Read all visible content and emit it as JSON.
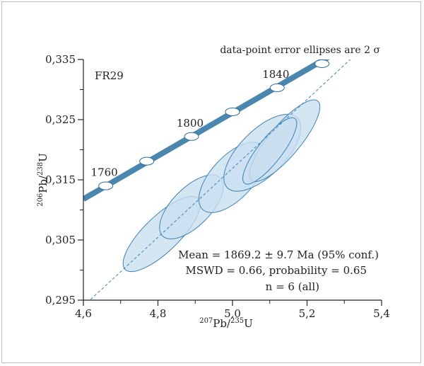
{
  "chart_data": {
    "type": "scatter",
    "title": "data-point error ellipses are 2 σ",
    "sample_label": "FR29",
    "xlabel": {
      "sup": "207",
      "main": "Pb/",
      "sup2": "235",
      "end": "U"
    },
    "ylabel": {
      "sup": "206",
      "main": "Pb/",
      "sup2": "238",
      "end": "U"
    },
    "xlim": [
      4.6,
      5.4
    ],
    "ylim": [
      0.295,
      0.335
    ],
    "x_ticks": [
      4.6,
      4.8,
      5.0,
      5.2,
      5.4
    ],
    "x_tick_labels": [
      "4,6",
      "4,8",
      "5,0",
      "5,2",
      "5,4"
    ],
    "y_ticks": [
      0.295,
      0.305,
      0.315,
      0.325,
      0.335
    ],
    "y_tick_labels": [
      "0,295",
      "0,305",
      "0,315",
      "0,325",
      "0,335"
    ],
    "concordia_color": "#4a86ae",
    "ellipse_fill": "#c9dff0",
    "ellipse_stroke": "#3f83b3",
    "concordia_points": [
      {
        "age": 1760,
        "x": 4.66,
        "y": 0.314,
        "label": "1760"
      },
      {
        "age": 1780,
        "x": 4.77,
        "y": 0.3181,
        "label": ""
      },
      {
        "age": 1800,
        "x": 4.89,
        "y": 0.3222,
        "label": "1800"
      },
      {
        "age": 1820,
        "x": 5.0,
        "y": 0.3263,
        "label": ""
      },
      {
        "age": 1840,
        "x": 5.12,
        "y": 0.3303,
        "label": "1840"
      },
      {
        "age": 1860,
        "x": 5.24,
        "y": 0.3343,
        "label": ""
      }
    ],
    "concordia_range": {
      "x": [
        4.6,
        5.26
      ],
      "y": [
        0.3118,
        0.3355
      ]
    },
    "discordia": {
      "x": [
        4.6,
        5.4
      ],
      "y": [
        0.294,
        0.3398
      ]
    },
    "ellipses": [
      {
        "cx": 4.81,
        "cy": 0.306,
        "angle_deg": 44,
        "rx_px": 72,
        "ry_px": 25
      },
      {
        "cx": 4.89,
        "cy": 0.3105,
        "angle_deg": 45,
        "rx_px": 58,
        "ry_px": 27
      },
      {
        "cx": 5.0,
        "cy": 0.3154,
        "angle_deg": 47,
        "rx_px": 62,
        "ry_px": 30
      },
      {
        "cx": 5.08,
        "cy": 0.3195,
        "angle_deg": 45,
        "rx_px": 70,
        "ry_px": 32
      },
      {
        "cx": 5.14,
        "cy": 0.3215,
        "angle_deg": 50,
        "rx_px": 73,
        "ry_px": 22
      },
      {
        "cx": 5.1,
        "cy": 0.3198,
        "angle_deg": 52,
        "rx_px": 58,
        "ry_px": 17
      }
    ],
    "results": [
      "Mean = 1869.2 ± 9.7 Ma (95% conf.)",
      "MSWD = 0.66, probability = 0.65",
      "n = 6 (all)"
    ]
  }
}
